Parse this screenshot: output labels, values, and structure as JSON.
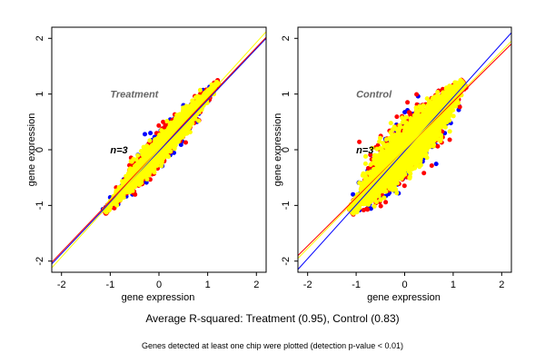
{
  "summary": "Average R-squared: Treatment (0.95), Control (0.83)",
  "footnote": "Genes detected at least one chip were plotted (detection p-value < 0.01)",
  "colors": {
    "series1": "#0000ff",
    "series2": "#ff0000",
    "series3": "#ffff00"
  },
  "chart_data": [
    {
      "type": "scatter",
      "title": "Treatment",
      "annotation": "n=3",
      "xlabel": "gene expression",
      "ylabel": "gene expression",
      "xlim": [
        -2.2,
        2.2
      ],
      "ylim": [
        -2.2,
        2.2
      ],
      "xticks": [
        "-2",
        "-1",
        "0",
        "1",
        "2"
      ],
      "yticks": [
        "-2",
        "-1",
        "0",
        "1",
        "2"
      ],
      "r_squared": 0.95,
      "point_cloud": {
        "x_range": [
          -1.1,
          1.2
        ],
        "spread": 0.25
      },
      "fit_lines": [
        {
          "color": "#0000ff",
          "from": [
            -2.2,
            -2.05
          ],
          "to": [
            2.2,
            2.0
          ]
        },
        {
          "color": "#ff0000",
          "from": [
            -2.2,
            -2.02
          ],
          "to": [
            2.2,
            2.02
          ]
        },
        {
          "color": "#ffff00",
          "from": [
            -2.2,
            -2.12
          ],
          "to": [
            2.2,
            2.12
          ]
        }
      ]
    },
    {
      "type": "scatter",
      "title": "Control",
      "annotation": "n=3",
      "xlabel": "gene expression",
      "ylabel": "gene expression",
      "xlim": [
        -2.2,
        2.2
      ],
      "ylim": [
        -2.2,
        2.2
      ],
      "xticks": [
        "-2",
        "-1",
        "0",
        "1",
        "2"
      ],
      "yticks": [
        "-2",
        "-1",
        "0",
        "1",
        "2"
      ],
      "r_squared": 0.83,
      "point_cloud": {
        "x_range": [
          -1.1,
          1.2
        ],
        "spread": 0.5
      },
      "fit_lines": [
        {
          "color": "#0000ff",
          "from": [
            -2.2,
            -2.15
          ],
          "to": [
            2.2,
            2.1
          ]
        },
        {
          "color": "#ff0000",
          "from": [
            -2.2,
            -1.9
          ],
          "to": [
            2.2,
            1.9
          ]
        },
        {
          "color": "#ffff00",
          "from": [
            -2.2,
            -1.95
          ],
          "to": [
            2.2,
            1.95
          ]
        }
      ]
    }
  ]
}
